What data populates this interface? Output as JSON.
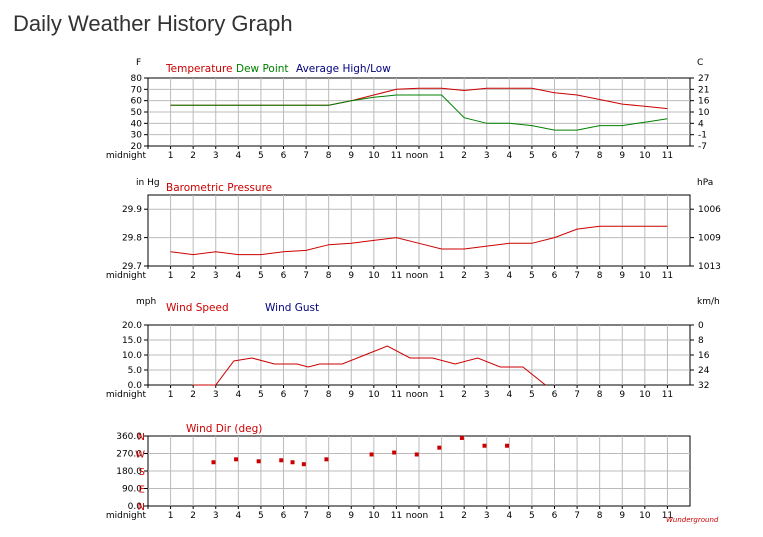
{
  "page": {
    "title": "Daily Weather History Graph"
  },
  "colors": {
    "temperature": "#cc0000",
    "dew_point": "#008000",
    "avg_high_low": "#000080",
    "pressure": "#cc0000",
    "wind_speed": "#cc0000",
    "wind_gust": "#000080",
    "wind_dir": "#cc0000",
    "grid": "#bbbbbb",
    "axis": "#000000"
  },
  "x_tick_labels": [
    "midnight",
    "1",
    "2",
    "3",
    "4",
    "5",
    "6",
    "7",
    "8",
    "9",
    "10",
    "11",
    "noon",
    "1",
    "2",
    "3",
    "4",
    "5",
    "6",
    "7",
    "8",
    "9",
    "10",
    "11"
  ],
  "chart_data": [
    {
      "type": "line",
      "legend": [
        "Temperature",
        "Dew Point",
        "Average High/Low"
      ],
      "left_unit": "F",
      "right_unit": "C",
      "ylim": [
        20,
        80
      ],
      "yticks": [
        20,
        30,
        40,
        50,
        60,
        70,
        80
      ],
      "right_ticks": [
        "27",
        "21",
        "16",
        "10",
        "4",
        "-1",
        "-7"
      ],
      "series": [
        {
          "name": "Temperature",
          "x": [
            1,
            2,
            3,
            4,
            5,
            6,
            7,
            8,
            9,
            10,
            11,
            12,
            13,
            14,
            15,
            16,
            17,
            18,
            19,
            20,
            21,
            22,
            23
          ],
          "values": [
            56,
            56,
            56,
            56,
            56,
            56,
            56,
            56,
            60,
            65,
            70,
            71,
            71,
            69,
            71,
            71,
            71,
            67,
            65,
            61,
            57,
            55,
            53
          ]
        },
        {
          "name": "Dew Point",
          "x": [
            1,
            2,
            3,
            4,
            5,
            6,
            7,
            8,
            9,
            10,
            11,
            12,
            13,
            14,
            15,
            16,
            17,
            18,
            19,
            20,
            21,
            22,
            23
          ],
          "values": [
            56,
            56,
            56,
            56,
            56,
            56,
            56,
            56,
            60,
            63,
            65,
            65,
            65,
            45,
            40,
            40,
            38,
            34,
            34,
            38,
            38,
            41,
            44
          ]
        }
      ]
    },
    {
      "type": "line",
      "legend": [
        "Barometric Pressure"
      ],
      "left_unit": "in Hg",
      "right_unit": "hPa",
      "ylim": [
        29.7,
        29.95
      ],
      "yticks": [
        "29.7",
        "29.8",
        "29.9"
      ],
      "right_ticks": [
        "1006",
        "1009",
        "1013"
      ],
      "series": [
        {
          "name": "Barometric Pressure",
          "x": [
            1,
            2,
            3,
            4,
            5,
            6,
            7,
            8,
            9,
            10,
            11,
            12,
            13,
            14,
            15,
            16,
            17,
            18,
            19,
            20,
            21,
            22,
            23
          ],
          "values": [
            29.75,
            29.74,
            29.75,
            29.74,
            29.74,
            29.75,
            29.755,
            29.775,
            29.78,
            29.79,
            29.8,
            29.78,
            29.76,
            29.76,
            29.77,
            29.78,
            29.78,
            29.8,
            29.83,
            29.84,
            29.84,
            29.84,
            29.84
          ]
        }
      ]
    },
    {
      "type": "line",
      "legend": [
        "Wind Speed",
        "Wind Gust"
      ],
      "left_unit": "mph",
      "right_unit": "km/h",
      "ylim": [
        0,
        20
      ],
      "yticks": [
        "0.0",
        "5.0",
        "10.0",
        "15.0",
        "20.0"
      ],
      "right_ticks": [
        "0",
        "8",
        "16",
        "24",
        "32"
      ],
      "series": [
        {
          "name": "Wind Speed",
          "x": [
            2,
            3,
            3.8,
            4.6,
            5.6,
            6.6,
            7.1,
            7.6,
            8.6,
            9.6,
            10.6,
            11.6,
            12.6,
            13.6,
            14.6,
            15.6,
            16.6,
            17.6
          ],
          "values": [
            0,
            0,
            8,
            9,
            7,
            7,
            6,
            7,
            7,
            10,
            13,
            9,
            9,
            7,
            9,
            6,
            6,
            0
          ]
        }
      ]
    },
    {
      "type": "scatter",
      "legend": [
        "Wind Dir (deg)"
      ],
      "ylim": [
        0,
        360
      ],
      "yticks": [
        "0.0",
        "90.0",
        "180.0",
        "270.0",
        "360.0"
      ],
      "direction_labels": [
        "N",
        "E",
        "S",
        "W",
        "N"
      ],
      "series": [
        {
          "name": "Wind Dir (deg)",
          "x": [
            2.9,
            3.9,
            4.9,
            5.9,
            6.4,
            6.9,
            7.9,
            9.9,
            10.9,
            11.9,
            12.9,
            13.9,
            14.9,
            15.9
          ],
          "values": [
            225,
            240,
            230,
            235,
            225,
            215,
            240,
            265,
            275,
            265,
            300,
            350,
            310,
            310
          ]
        }
      ]
    }
  ],
  "footer": {
    "credit": "Wunderground"
  }
}
